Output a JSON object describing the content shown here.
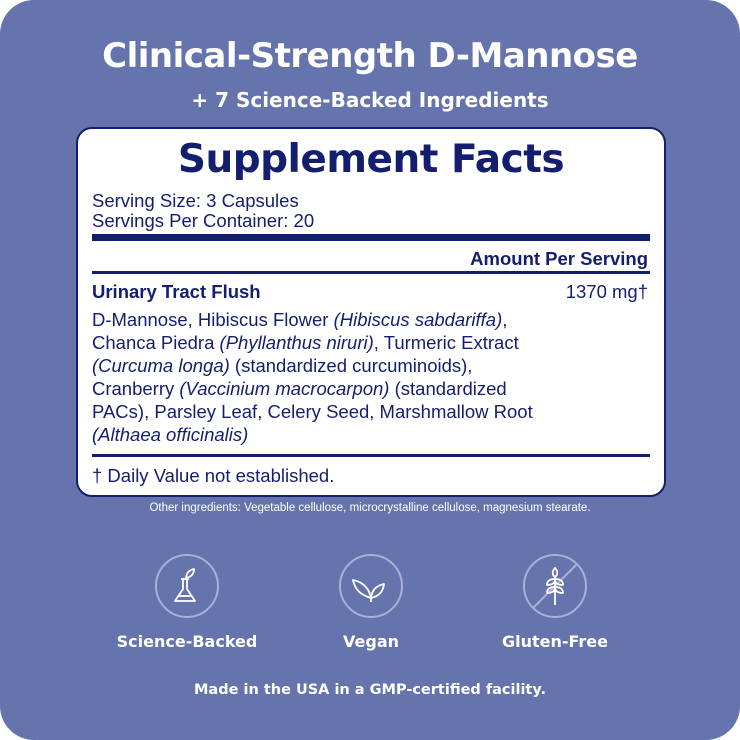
{
  "header": {
    "title": "Clinical-Strength D-Mannose",
    "subtitle": "+ 7 Science-Backed Ingredients"
  },
  "facts": {
    "title": "Supplement Facts",
    "serving_size": "Serving Size: 3 Capsules",
    "servings_per_container": "Servings Per Container: 20",
    "amount_header": "Amount Per Serving",
    "blend_name": "Urinary Tract Flush",
    "blend_amount": "1370 mg†",
    "ingredients": [
      [
        "D-Mannose, Hibiscus Flower ",
        "(Hibiscus sabdariffa)",
        ","
      ],
      [
        "Chanca Piedra ",
        "(Phyllanthus niruri)",
        ", Turmeric Extract"
      ],
      [
        "",
        "(Curcuma longa)",
        " (standardized curcuminoids),"
      ],
      [
        "Cranberry ",
        "(Vaccinium macrocarpon)",
        " (standardized"
      ],
      [
        "PACs), Parsley Leaf, Celery Seed, Marshmallow Root",
        "",
        ""
      ],
      [
        "",
        "(Althaea officinalis)",
        ""
      ]
    ],
    "footnote": "† Daily Value not established."
  },
  "other_ingredients": "Other ingredients: Vegetable cellulose, microcrystalline cellulose, magnesium stearate.",
  "badges": [
    {
      "label": "Science-Backed",
      "icon": "flask-leaf-icon"
    },
    {
      "label": "Vegan",
      "icon": "leaves-icon"
    },
    {
      "label": "Gluten-Free",
      "icon": "no-wheat-icon"
    }
  ],
  "footer": "Made in the USA in a GMP-certified facility.",
  "colors": {
    "background": "#6674ad",
    "navy": "#141e6e",
    "panel": "#ffffff"
  }
}
